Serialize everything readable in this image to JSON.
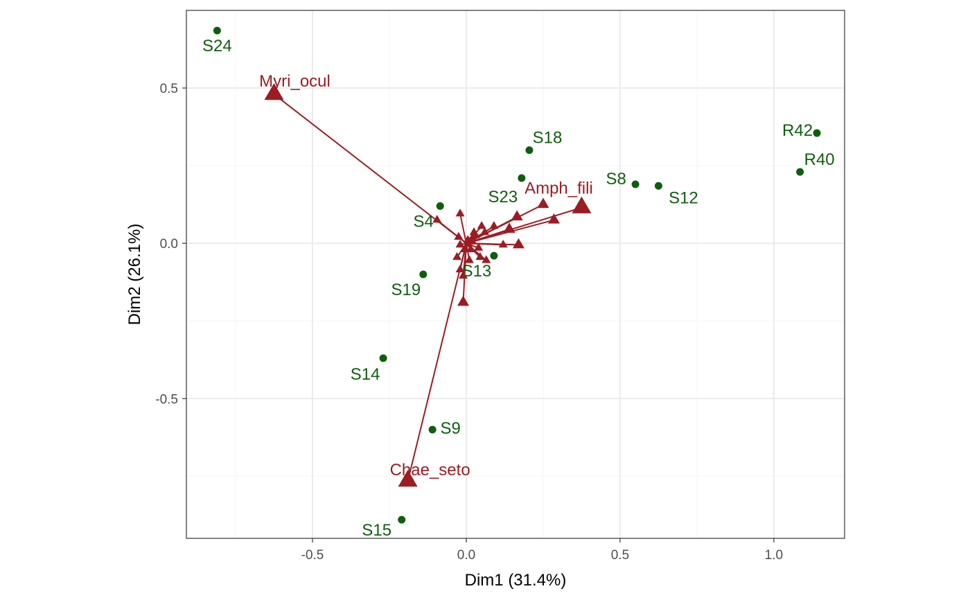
{
  "chart_data": {
    "type": "scatter",
    "title": "",
    "xlabel": "Dim1 (31.4%)",
    "ylabel": "Dim2 (26.1%)",
    "xlim": [
      -0.91,
      1.23
    ],
    "ylim": [
      -0.95,
      0.75
    ],
    "x_ticks": [
      -0.5,
      0.0,
      0.5,
      1.0
    ],
    "x_tick_labels": [
      "-0.5",
      "0.0",
      "0.5",
      "1.0"
    ],
    "y_ticks": [
      -0.5,
      0.0,
      0.5
    ],
    "y_tick_labels": [
      "-0.5",
      "0.0",
      "0.5"
    ],
    "grid": true,
    "legend": "none",
    "colors": {
      "sites": "#0f5e0f",
      "species": "#9b1c22",
      "panel_border": "#333333",
      "grid_major": "#ebebeb",
      "grid_minor": "#f5f5f5"
    },
    "sites": [
      {
        "name": "S24",
        "x": -0.81,
        "y": 0.685
      },
      {
        "name": "S18",
        "x": 0.205,
        "y": 0.3
      },
      {
        "name": "S23",
        "x": 0.18,
        "y": 0.21
      },
      {
        "name": "S8",
        "x": 0.55,
        "y": 0.19
      },
      {
        "name": "S12",
        "x": 0.625,
        "y": 0.185
      },
      {
        "name": "R42",
        "x": 1.14,
        "y": 0.355
      },
      {
        "name": "R40",
        "x": 1.085,
        "y": 0.23
      },
      {
        "name": "S4",
        "x": -0.085,
        "y": 0.12
      },
      {
        "name": "S13",
        "x": 0.09,
        "y": -0.04
      },
      {
        "name": "S19",
        "x": -0.14,
        "y": -0.1
      },
      {
        "name": "S14",
        "x": -0.27,
        "y": -0.37
      },
      {
        "name": "S9",
        "x": -0.11,
        "y": -0.6
      },
      {
        "name": "S15",
        "x": -0.21,
        "y": -0.89
      }
    ],
    "species": [
      {
        "name": "Myri_ocul",
        "x": -0.625,
        "y": 0.48,
        "labeled": true
      },
      {
        "name": "Amph_fili",
        "x": 0.375,
        "y": 0.115,
        "labeled": true
      },
      {
        "name": "Chae_seto",
        "x": -0.19,
        "y": -0.765,
        "labeled": true
      },
      {
        "name": "",
        "x": 0.25,
        "y": 0.125,
        "labeled": false
      },
      {
        "name": "",
        "x": 0.285,
        "y": 0.075,
        "labeled": false
      },
      {
        "name": "",
        "x": 0.165,
        "y": 0.085,
        "labeled": false
      },
      {
        "name": "",
        "x": -0.01,
        "y": -0.19,
        "labeled": false
      },
      {
        "name": "",
        "x": -0.095,
        "y": 0.075,
        "labeled": false
      },
      {
        "name": "",
        "x": -0.02,
        "y": 0.095,
        "labeled": false
      },
      {
        "name": "",
        "x": 0.17,
        "y": -0.005,
        "labeled": false
      },
      {
        "name": "",
        "x": 0.12,
        "y": -0.005,
        "labeled": false
      },
      {
        "name": "",
        "x": 0.14,
        "y": 0.045,
        "labeled": false
      },
      {
        "name": "",
        "x": 0.09,
        "y": 0.055,
        "labeled": false
      },
      {
        "name": "",
        "x": 0.06,
        "y": 0.035,
        "labeled": false
      },
      {
        "name": "",
        "x": 0.05,
        "y": 0.055,
        "labeled": false
      },
      {
        "name": "",
        "x": 0.04,
        "y": -0.015,
        "labeled": false
      },
      {
        "name": "",
        "x": 0.03,
        "y": 0.025,
        "labeled": false
      },
      {
        "name": "",
        "x": 0.065,
        "y": -0.055,
        "labeled": false
      },
      {
        "name": "",
        "x": 0.045,
        "y": -0.045,
        "labeled": false
      },
      {
        "name": "",
        "x": 0.01,
        "y": -0.055,
        "labeled": false
      },
      {
        "name": "",
        "x": -0.01,
        "y": -0.105,
        "labeled": false
      },
      {
        "name": "",
        "x": -0.02,
        "y": -0.085,
        "labeled": false
      },
      {
        "name": "",
        "x": -0.03,
        "y": -0.045,
        "labeled": false
      },
      {
        "name": "",
        "x": -0.025,
        "y": 0.02,
        "labeled": false
      },
      {
        "name": "",
        "x": -0.02,
        "y": -0.005,
        "labeled": false
      },
      {
        "name": "",
        "x": 0.005,
        "y": 0.01,
        "labeled": false
      },
      {
        "name": "",
        "x": 0.02,
        "y": 0.005,
        "labeled": false
      },
      {
        "name": "",
        "x": 0.015,
        "y": -0.02,
        "labeled": false
      },
      {
        "name": "",
        "x": -0.005,
        "y": -0.02,
        "labeled": false
      },
      {
        "name": "",
        "x": 0.025,
        "y": 0.035,
        "labeled": false
      }
    ]
  }
}
